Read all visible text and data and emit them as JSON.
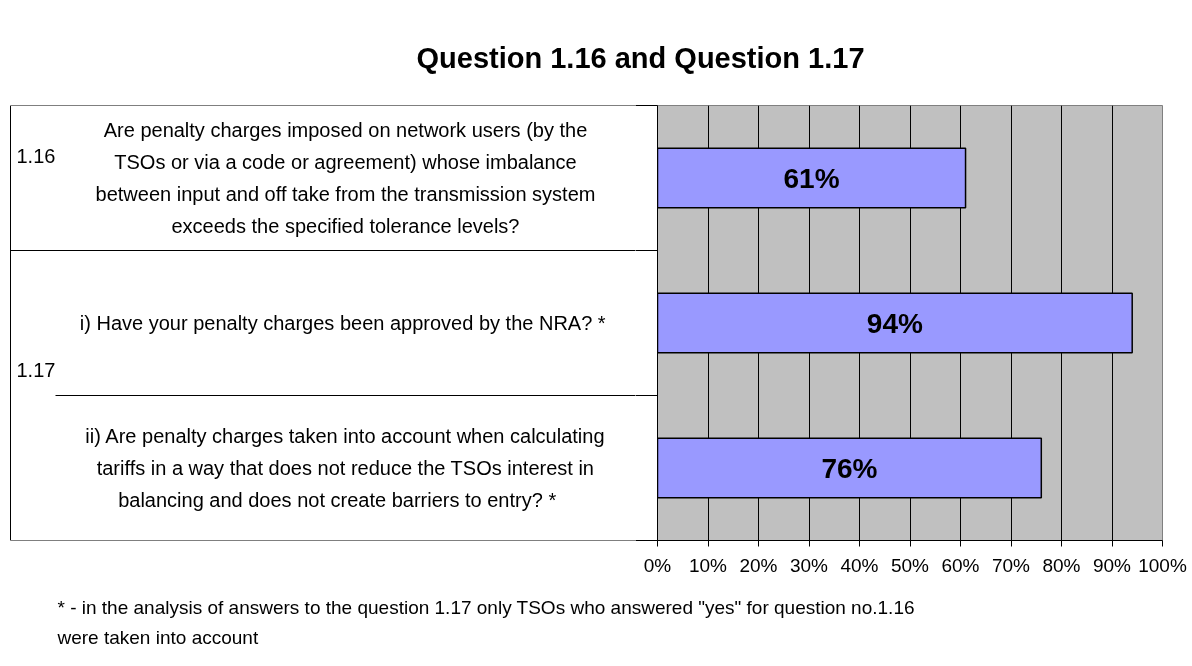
{
  "chart_data": {
    "type": "bar",
    "orientation": "horizontal",
    "title": "Question 1.16 and Question 1.17",
    "categories": [
      "Are penalty charges imposed on network users (by the\nTSOs or via a code or agreement) whose imbalance\nbetween input and off take from the transmission system\nexceeds the specified tolerance levels?",
      "i) Have your penalty charges been approved by the NRA?  *",
      "ii) Are penalty charges taken into account when calculating\ntariffs in a way that does not reduce the TSOs interest in\nbalancing and does not create barriers to entry?    *"
    ],
    "values": [
      61,
      94,
      76
    ],
    "color": "#9999ff",
    "value_labels": [
      "61%",
      "94%",
      "76%"
    ],
    "xlim": [
      0,
      100
    ],
    "xticks": [
      {
        "value": 0,
        "label": "0%"
      },
      {
        "value": 10,
        "label": "10%"
      },
      {
        "value": 20,
        "label": "20%"
      },
      {
        "value": 30,
        "label": "30%"
      },
      {
        "value": 40,
        "label": "40%"
      },
      {
        "value": 50,
        "label": "50%"
      },
      {
        "value": 60,
        "label": "60%"
      },
      {
        "value": 70,
        "label": "70%"
      },
      {
        "value": 80,
        "label": "80%"
      },
      {
        "value": 90,
        "label": "90%"
      },
      {
        "value": 100,
        "label": "100%"
      }
    ],
    "grid": "x",
    "annotations": [
      "1.16",
      "1.17",
      "* - in the analysis of answers to the question 1.17 only TSOs who answered \"yes\"  for question no.1.16\nwere taken into account"
    ]
  }
}
